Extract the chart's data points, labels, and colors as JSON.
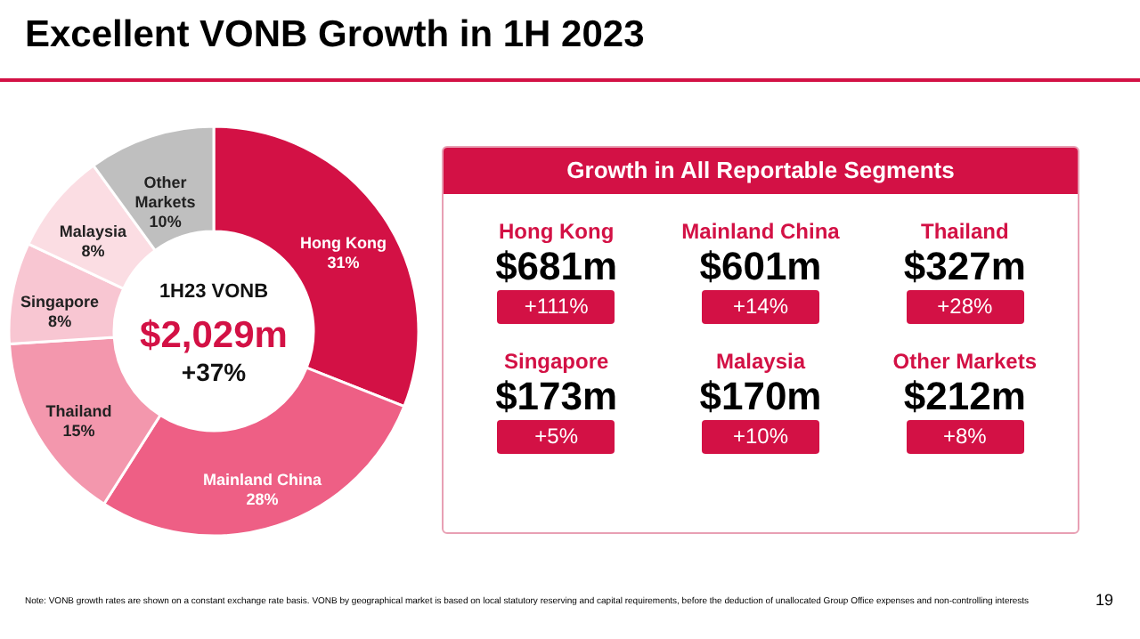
{
  "chart_data": [
    {
      "type": "donut",
      "title": "Excellent VONB Growth in 1H 2023",
      "categories": [
        "Hong Kong",
        "Mainland China",
        "Thailand",
        "Singapore",
        "Malaysia",
        "Other Markets"
      ],
      "values": [
        31,
        28,
        15,
        8,
        8,
        10
      ],
      "value_labels": [
        "31%",
        "28%",
        "15%",
        "8%",
        "8%",
        "10%"
      ],
      "colors": [
        "#d31145",
        "#ee5f85",
        "#f397ad",
        "#f8c6d2",
        "#fbdde3",
        "#bfbfbf"
      ],
      "annotations": [
        "1H23 VONB",
        "$2,029m",
        "+37%",
        "Note: VONB growth rates are shown on a constant exchange rate basis. VONB by geographical market is based on local statutory reserving and capital requirements, before the deduction of unallocated Group Office expenses and non-controlling interests",
        "19"
      ]
    },
    {
      "type": "other",
      "title": "Growth in All Reportable Segments",
      "annotations": [
        "Hong Kong",
        "$681m",
        "+111%",
        "Mainland China",
        "$601m",
        "+14%",
        "Thailand",
        "$327m",
        "+28%",
        "Singapore",
        "$173m",
        "+5%",
        "Malaysia",
        "$170m",
        "+10%",
        "Other Markets",
        "$212m",
        "+8%"
      ]
    }
  ]
}
